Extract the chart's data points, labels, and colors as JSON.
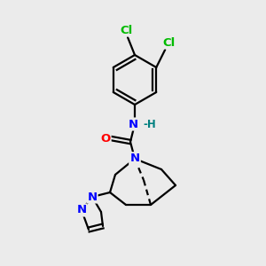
{
  "background_color": "#ebebeb",
  "bond_color": "#000000",
  "atom_colors": {
    "N": "#0000ff",
    "O": "#ff0000",
    "Cl": "#00bb00",
    "H": "#008080",
    "C": "#000000"
  },
  "figsize": [
    3.0,
    3.0
  ],
  "dpi": 100
}
